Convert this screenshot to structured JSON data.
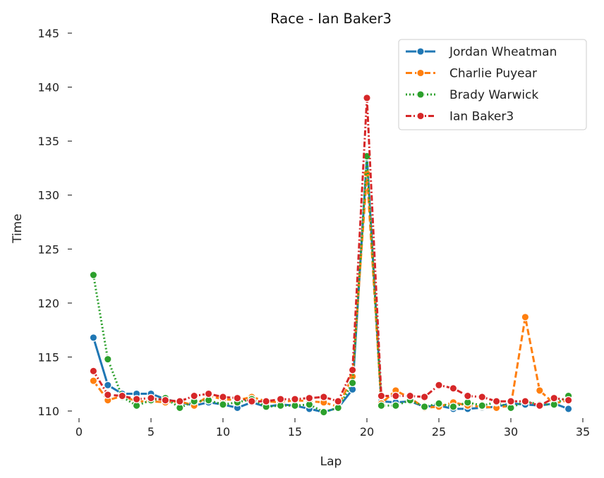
{
  "chart_data": {
    "type": "line",
    "title": "Race - Ian Baker3",
    "xlabel": "Lap",
    "ylabel": "Time",
    "xlim": [
      0,
      35
    ],
    "ylim": [
      110,
      145
    ],
    "xticks": [
      0,
      5,
      10,
      15,
      20,
      25,
      30,
      35
    ],
    "yticks": [
      110,
      115,
      120,
      125,
      130,
      135,
      140,
      145
    ],
    "grid": false,
    "legend_position": "top-right",
    "x": [
      1,
      2,
      3,
      4,
      5,
      6,
      7,
      8,
      9,
      10,
      11,
      12,
      13,
      14,
      15,
      16,
      17,
      18,
      19,
      20,
      21,
      22,
      23,
      24,
      25,
      26,
      27,
      28,
      29,
      30,
      31,
      32,
      33,
      34
    ],
    "series": [
      {
        "name": "Jordan Wheatman",
        "color": "#1f77b4",
        "dash": "solid",
        "values": [
          116.8,
          112.4,
          111.6,
          111.6,
          111.6,
          111.1,
          110.8,
          110.5,
          110.8,
          110.6,
          110.3,
          110.8,
          110.4,
          110.6,
          110.5,
          110.2,
          109.9,
          110.3,
          112.0,
          133.5,
          110.9,
          110.8,
          110.9,
          110.4,
          110.5,
          110.2,
          110.2,
          110.3,
          110.4,
          110.7,
          110.6,
          110.5,
          110.7,
          110.2
        ]
      },
      {
        "name": "Charlie Puyear",
        "color": "#ff7f0e",
        "dash": "dashed",
        "values": [
          112.8,
          111.0,
          111.4,
          110.9,
          110.9,
          110.8,
          110.9,
          110.5,
          111.4,
          111.1,
          111.0,
          111.3,
          110.9,
          110.8,
          111.0,
          110.9,
          110.8,
          110.4,
          113.2,
          132.0,
          110.7,
          111.9,
          111.2,
          110.3,
          110.4,
          110.8,
          110.5,
          110.4,
          110.3,
          110.5,
          118.7,
          111.9,
          110.7,
          111.0
        ]
      },
      {
        "name": "Brady Warwick",
        "color": "#2ca02c",
        "dash": "dotted",
        "values": [
          122.6,
          114.8,
          111.3,
          110.5,
          111.0,
          111.2,
          110.3,
          110.9,
          111.0,
          110.6,
          110.8,
          111.1,
          110.4,
          110.5,
          110.5,
          110.6,
          109.9,
          110.3,
          112.6,
          133.6,
          110.5,
          110.5,
          111.0,
          110.4,
          110.7,
          110.4,
          110.8,
          110.5,
          110.8,
          110.3,
          110.9,
          110.6,
          110.6,
          111.4
        ]
      },
      {
        "name": "Ian Baker3",
        "color": "#d62728",
        "dash": "dashdot",
        "values": [
          113.7,
          111.5,
          111.4,
          111.1,
          111.2,
          111.0,
          110.9,
          111.4,
          111.6,
          111.3,
          111.2,
          110.9,
          110.9,
          111.1,
          111.1,
          111.2,
          111.3,
          110.9,
          113.8,
          139.0,
          111.4,
          111.4,
          111.4,
          111.3,
          112.4,
          112.1,
          111.4,
          111.3,
          110.9,
          110.9,
          110.9,
          110.5,
          111.2,
          111.0
        ]
      }
    ]
  }
}
